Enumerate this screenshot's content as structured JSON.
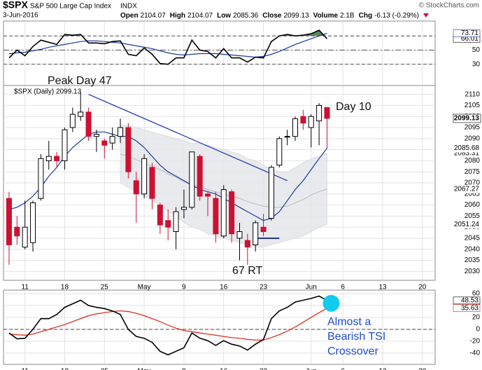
{
  "header": {
    "symbol": "$SPX",
    "name": "S&P 500 Large Cap Index",
    "exchange": "INDX",
    "source": "© StockCharts.com",
    "date": "3-Jun-2016",
    "quote": [
      {
        "label": "Open",
        "value": "2104.07"
      },
      {
        "label": "High",
        "value": "2104.07"
      },
      {
        "label": "Low",
        "value": "2085.36"
      },
      {
        "label": "Close",
        "value": "2099.13"
      },
      {
        "label": "Volume",
        "value": "2.1B"
      },
      {
        "label": "Chg",
        "value": "-6.13 (-0.29%)"
      }
    ]
  },
  "chart_data": [
    {
      "type": "line",
      "panel": "rsi",
      "series": [
        {
          "color": "#000000",
          "values": [
            39,
            50,
            42,
            55,
            64,
            61,
            58,
            72,
            71,
            72,
            60,
            60,
            59,
            62,
            63,
            44,
            42,
            53,
            44,
            31,
            30,
            39,
            39,
            64,
            50,
            48,
            39,
            52,
            39,
            39,
            33,
            40,
            39,
            62,
            70,
            72,
            70,
            71,
            73,
            78,
            66.01
          ]
        },
        {
          "color": "#1a3a9c",
          "values": [
            45,
            46,
            47,
            49,
            51,
            54,
            56,
            58,
            60,
            62,
            63,
            63,
            62,
            61,
            60,
            58,
            56,
            54,
            52,
            49,
            46,
            44,
            43,
            44,
            45,
            45,
            45,
            44,
            43,
            42,
            41,
            40,
            41,
            44,
            48,
            53,
            58,
            62,
            66,
            70,
            73.71
          ]
        }
      ],
      "overbought": 70,
      "fill_color": "#5a8a5a",
      "ylim": [
        0,
        91
      ],
      "yticks": [
        30,
        50
      ],
      "xlim": [
        -0.7,
        53.6
      ]
    },
    {
      "type": "candlestick",
      "panel": "price",
      "legend": "$SPX (Daily) 2099.13",
      "open": [
        2063,
        2050,
        2041,
        2043,
        2063,
        2080,
        2082,
        2080,
        2095,
        2100,
        2102,
        2091,
        2089,
        2088,
        2091,
        2095,
        2071,
        2065,
        2077,
        2060,
        2053,
        2048,
        2058,
        2059,
        2082,
        2065,
        2063,
        2046,
        2066,
        2045,
        2044,
        2042,
        2050,
        2054,
        2078,
        2091,
        2091,
        2100,
        2095,
        2098,
        2104.07
      ],
      "high": [
        2066,
        2055,
        2062,
        2062,
        2083,
        2089,
        2084,
        2095,
        2104,
        2111,
        2104,
        2094,
        2090,
        2095,
        2099,
        2097,
        2075,
        2083,
        2079,
        2061,
        2058,
        2059,
        2067,
        2084,
        2083,
        2066,
        2066,
        2069,
        2067,
        2052,
        2047,
        2053,
        2056,
        2078,
        2091,
        2094,
        2100,
        2103,
        2101,
        2106,
        2104.07
      ],
      "low": [
        2033,
        2042,
        2040,
        2039,
        2062,
        2076,
        2077,
        2076,
        2093,
        2098,
        2089,
        2084,
        2081,
        2085,
        2088,
        2072,
        2052,
        2063,
        2058,
        2047,
        2044,
        2040,
        2054,
        2058,
        2062,
        2055,
        2043,
        2045,
        2043,
        2035,
        2033,
        2039,
        2046,
        2053,
        2077,
        2087,
        2089,
        2094,
        2086,
        2087,
        2085.36
      ],
      "close": [
        2042,
        2046,
        2050,
        2061,
        2081,
        2082,
        2080,
        2094,
        2101,
        2102,
        2091,
        2092,
        2087,
        2091,
        2095,
        2075,
        2065,
        2081,
        2063,
        2051,
        2050,
        2057,
        2059,
        2084,
        2064,
        2064,
        2047,
        2067,
        2047,
        2048,
        2041,
        2052,
        2048,
        2077,
        2090,
        2091,
        2099,
        2097,
        2100,
        2105,
        2099.13
      ],
      "up_color": "#000000",
      "down_color": "#cc1133",
      "ma": {
        "color": "#1a3a9c",
        "values": [
          2058,
          2059,
          2061,
          2064,
          2068,
          2073,
          2077,
          2082,
          2086,
          2089,
          2092,
          2093,
          2093,
          2092,
          2091,
          2091,
          2089,
          2086,
          2082,
          2078,
          2075,
          2073,
          2071,
          2069,
          2067,
          2066,
          2065,
          2063,
          2061,
          2059,
          2057,
          2055,
          2053,
          2054,
          2057,
          2062,
          2067,
          2071,
          2076,
          2081,
          2085.68
        ]
      },
      "band": {
        "color": "#e6e7ea",
        "upper": [
          null,
          null,
          null,
          null,
          null,
          null,
          null,
          null,
          null,
          null,
          null,
          null,
          null,
          null,
          2096,
          2096,
          2095,
          2094,
          2093,
          2092,
          2091,
          2090,
          2089,
          2088,
          2088,
          2087,
          2086,
          2085,
          2084,
          2083,
          2081,
          2080,
          2078,
          2076,
          2075,
          2075,
          2077,
          2079,
          2081,
          2082,
          2083.31
        ],
        "middle": [
          null,
          null,
          null,
          null,
          null,
          null,
          null,
          null,
          null,
          null,
          null,
          null,
          null,
          null,
          2083,
          2082,
          2080.5,
          2079,
          2077.5,
          2076,
          2074,
          2072.5,
          2070.5,
          2069,
          2068.5,
          2067,
          2066,
          2065,
          2064,
          2063,
          2061.5,
          2060.5,
          2059.5,
          2059,
          2059,
          2059.5,
          2061,
          2062.5,
          2064.5,
          2066,
          2067.27
        ],
        "lower": [
          null,
          null,
          null,
          null,
          null,
          null,
          null,
          null,
          null,
          null,
          null,
          null,
          null,
          null,
          2070,
          2068,
          2066,
          2064,
          2062,
          2060,
          2057,
          2055,
          2052,
          2050,
          2049,
          2047,
          2046,
          2045,
          2044,
          2043,
          2042,
          2041,
          2041,
          2042,
          2043,
          2044,
          2045,
          2046,
          2048,
          2050,
          2051.24
        ]
      },
      "trendlines": [
        {
          "color": "#2233aa",
          "x": [
            10,
            35
          ],
          "y": [
            2110,
            2071
          ]
        },
        {
          "color": "#2233aa",
          "x": [
            31,
            34
          ],
          "y": [
            2045,
            2045
          ]
        }
      ],
      "annotations": {
        "peak": "Peak Day 47",
        "day10": "Day 10",
        "rt": "67 RT"
      },
      "xlim": [
        -0.7,
        53.6
      ],
      "ylim": [
        2026,
        2114
      ],
      "yticks": [
        2030,
        2035,
        2040,
        2045,
        2050,
        2055,
        2060,
        2065,
        2070,
        2075,
        2080,
        2085,
        2090,
        2095,
        2100,
        2105,
        2110
      ],
      "xticks": [
        {
          "value": 2,
          "label": "11"
        },
        {
          "value": 7,
          "label": "18"
        },
        {
          "value": 12,
          "label": "25"
        },
        {
          "value": 17,
          "label": "May"
        },
        {
          "value": 22,
          "label": "9"
        },
        {
          "value": 27,
          "label": "16"
        },
        {
          "value": 32,
          "label": "23"
        },
        {
          "value": 38,
          "label": "Jun"
        },
        {
          "value": 42,
          "label": "6"
        },
        {
          "value": 47,
          "label": "13"
        },
        {
          "value": 52,
          "label": "20"
        }
      ],
      "grid": true
    },
    {
      "type": "line",
      "panel": "tsi",
      "series": [
        {
          "color": "#000000",
          "values": [
            -6,
            -16,
            -15,
            0,
            18,
            18,
            25,
            37,
            43,
            49,
            40,
            37,
            35,
            31,
            25,
            0,
            -12,
            -15,
            -22,
            -37,
            -43,
            -37,
            -31,
            -6,
            -15,
            -19,
            -27,
            -19,
            -25,
            -28,
            -35,
            -25,
            -17,
            18,
            31,
            37,
            46,
            49,
            52,
            56,
            48.53
          ]
        },
        {
          "color": "#dd2211",
          "values": [
            -8,
            -9,
            -10,
            -8,
            -4,
            0,
            4,
            8,
            13,
            18,
            23,
            26,
            28,
            30,
            31,
            30,
            27,
            23,
            18,
            13,
            7,
            2,
            -2,
            -4,
            -6,
            -8,
            -10,
            -12,
            -14,
            -15,
            -17,
            -18,
            -18,
            -14,
            -9,
            -3,
            4,
            12,
            20,
            28,
            35.63
          ]
        }
      ],
      "zero_line": 0,
      "annotation": [
        "Almost a",
        "Bearish TSI",
        "Crossover"
      ],
      "ylim": [
        -59,
        66
      ],
      "yticks": [
        -40,
        -20,
        0,
        20,
        40,
        60
      ],
      "xlim": [
        -0.7,
        53.6
      ],
      "xticks": [
        {
          "value": 2,
          "label": "11"
        },
        {
          "value": 7,
          "label": "18"
        },
        {
          "value": 12,
          "label": "25"
        },
        {
          "value": 17,
          "label": "May"
        },
        {
          "value": 22,
          "label": "9"
        },
        {
          "value": 27,
          "label": "16"
        },
        {
          "value": 32,
          "label": "23"
        },
        {
          "value": 38,
          "label": "Jun"
        },
        {
          "value": 42,
          "label": "6"
        },
        {
          "value": 47,
          "label": "13"
        },
        {
          "value": 52,
          "label": "20"
        }
      ]
    }
  ]
}
